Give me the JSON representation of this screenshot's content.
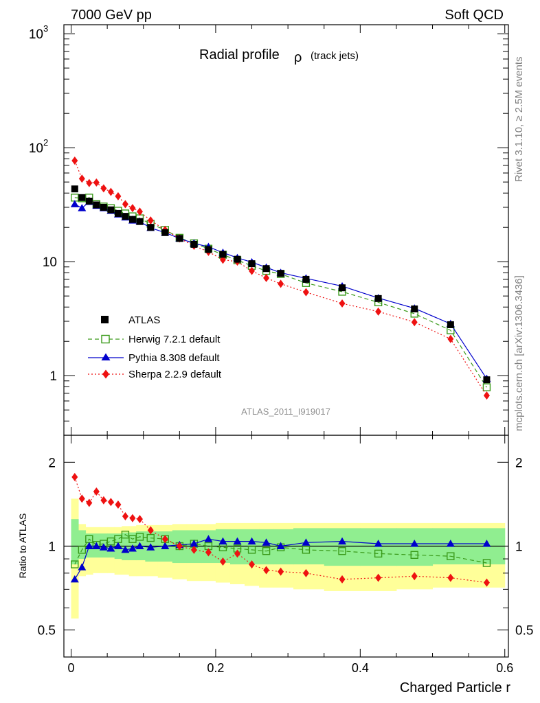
{
  "header": {
    "left": "7000 GeV pp",
    "right": "Soft QCD"
  },
  "side_labels": {
    "rivet": "Rivet 3.1.10, ≥ 2.5M events",
    "source": "mcplots.cern.ch [arXiv:1306.3436]"
  },
  "chart_data": [
    {
      "type": "line",
      "panel": "main",
      "title": "Radial profile",
      "title_symbol": "ρ",
      "title_suffix": "(track jets)",
      "analysis_label": "ATLAS_2011_I919017",
      "y_scale": "log",
      "ylim": [
        0.3,
        1200
      ],
      "xlim": [
        -0.01,
        0.605
      ],
      "y_tick_labels": {
        "1": "1",
        "10": "10",
        "100": "10^2",
        "1000": "10^3"
      },
      "x": [
        0.005,
        0.015,
        0.025,
        0.035,
        0.045,
        0.055,
        0.065,
        0.075,
        0.085,
        0.095,
        0.11,
        0.13,
        0.15,
        0.17,
        0.19,
        0.21,
        0.23,
        0.25,
        0.27,
        0.29,
        0.325,
        0.375,
        0.425,
        0.475,
        0.525,
        0.575
      ],
      "series": [
        {
          "name": "ATLAS",
          "color": "#000000",
          "marker": "square",
          "values": [
            43.5,
            36.5,
            34,
            31.5,
            30,
            28.5,
            26.5,
            25,
            23.5,
            22.5,
            20,
            18,
            16,
            14.2,
            12.8,
            11.6,
            10.5,
            9.6,
            8.7,
            7.9,
            7,
            5.9,
            4.75,
            3.85,
            2.8,
            0.92
          ]
        },
        {
          "name": "Herwig 7.2.1 default",
          "color": "#3a9a1a",
          "marker": "open-square",
          "dash": "6,4",
          "values": [
            36.5,
            36,
            36.5,
            32,
            30.5,
            29.5,
            28,
            26.5,
            25,
            24,
            21.5,
            19,
            16.2,
            14.5,
            13,
            11.5,
            10.3,
            9.2,
            8.3,
            7.8,
            6.5,
            5.45,
            4.4,
            3.5,
            2.5,
            0.79
          ]
        },
        {
          "name": "Pythia 8.308 default",
          "color": "#0000cc",
          "marker": "triangle",
          "dash": "",
          "values": [
            32,
            29.5,
            33.5,
            31,
            29.5,
            28,
            26,
            24.5,
            23,
            22.5,
            19.8,
            18,
            16,
            14.5,
            13.5,
            12,
            10.8,
            9.9,
            8.9,
            8,
            7.15,
            6.1,
            4.8,
            3.9,
            2.85,
            0.94
          ]
        },
        {
          "name": "Sherpa 2.2.9 default",
          "color": "#ee1111",
          "marker": "diamond",
          "dash": "2,3",
          "values": [
            77,
            53.5,
            49,
            49.5,
            44,
            41,
            37.5,
            32,
            29.5,
            27.5,
            23,
            19,
            16,
            13.8,
            12.2,
            10.4,
            10,
            8.3,
            7.2,
            6.4,
            5.4,
            4.3,
            3.65,
            2.95,
            2.1,
            0.67
          ]
        }
      ]
    },
    {
      "type": "line",
      "panel": "ratio",
      "ylabel": "Ratio to ATLAS",
      "xlabel": "Charged Particle r",
      "y_scale": "log",
      "ylim": [
        0.4,
        2.5
      ],
      "xlim": [
        -0.01,
        0.605
      ],
      "y_ticks": [
        0.5,
        1,
        2
      ],
      "x_ticks": [
        0,
        0.2,
        0.4,
        0.6
      ],
      "x_tick_labels": [
        "0",
        "0.2",
        "0.4",
        "0.6"
      ],
      "reference_line": 1,
      "uncertainty_bands": {
        "inner_color": "#90ee90",
        "outer_color": "#ffff99",
        "inner_lo": [
          0.86,
          0.9,
          0.91,
          0.91,
          0.91,
          0.91,
          0.9,
          0.89,
          0.89,
          0.89,
          0.88,
          0.88,
          0.87,
          0.87,
          0.87,
          0.87,
          0.86,
          0.86,
          0.86,
          0.86,
          0.86,
          0.85,
          0.85,
          0.85,
          0.86,
          0.86
        ],
        "inner_hi": [
          1.25,
          1.14,
          1.11,
          1.11,
          1.11,
          1.11,
          1.11,
          1.12,
          1.12,
          1.13,
          1.13,
          1.13,
          1.14,
          1.14,
          1.14,
          1.15,
          1.15,
          1.15,
          1.15,
          1.15,
          1.16,
          1.16,
          1.16,
          1.16,
          1.16,
          1.16
        ],
        "outer_lo": [
          0.55,
          0.78,
          0.79,
          0.8,
          0.8,
          0.8,
          0.79,
          0.79,
          0.78,
          0.78,
          0.78,
          0.77,
          0.76,
          0.75,
          0.75,
          0.74,
          0.73,
          0.72,
          0.71,
          0.71,
          0.7,
          0.69,
          0.69,
          0.7,
          0.71,
          0.71
        ],
        "outer_hi": [
          1.48,
          1.2,
          1.17,
          1.17,
          1.17,
          1.17,
          1.17,
          1.18,
          1.18,
          1.19,
          1.19,
          1.19,
          1.2,
          1.2,
          1.2,
          1.21,
          1.21,
          1.21,
          1.21,
          1.21,
          1.21,
          1.21,
          1.21,
          1.21,
          1.21,
          1.21
        ]
      },
      "x": [
        0.005,
        0.015,
        0.025,
        0.035,
        0.045,
        0.055,
        0.065,
        0.075,
        0.085,
        0.095,
        0.11,
        0.13,
        0.15,
        0.17,
        0.19,
        0.21,
        0.23,
        0.25,
        0.27,
        0.29,
        0.325,
        0.375,
        0.425,
        0.475,
        0.525,
        0.575
      ],
      "series": [
        {
          "name": "Herwig 7.2.1 default",
          "color": "#3a9a1a",
          "marker": "open-square",
          "dash": "6,4",
          "values": [
            0.86,
            0.97,
            1.06,
            1.01,
            1.02,
            1.04,
            1.06,
            1.1,
            1.06,
            1.08,
            1.07,
            1.06,
            1.0,
            1.02,
            1.0,
            0.99,
            0.98,
            0.97,
            0.96,
            0.99,
            0.97,
            0.96,
            0.94,
            0.93,
            0.92,
            0.87
          ]
        },
        {
          "name": "Pythia 8.308 default",
          "color": "#0000cc",
          "marker": "triangle",
          "dash": "",
          "values": [
            0.76,
            0.84,
            1.0,
            1.0,
            0.99,
            0.98,
            1.0,
            0.97,
            0.98,
            1.0,
            0.99,
            1.0,
            1.01,
            1.02,
            1.06,
            1.04,
            1.04,
            1.04,
            1.03,
            1.0,
            1.03,
            1.04,
            1.02,
            1.02,
            1.02,
            1.02
          ]
        },
        {
          "name": "Sherpa 2.2.9 default",
          "color": "#ee1111",
          "marker": "diamond",
          "dash": "2,3",
          "values": [
            1.77,
            1.48,
            1.43,
            1.57,
            1.46,
            1.44,
            1.41,
            1.28,
            1.26,
            1.25,
            1.14,
            1.06,
            1.0,
            0.97,
            0.95,
            0.88,
            0.94,
            0.86,
            0.82,
            0.81,
            0.8,
            0.76,
            0.77,
            0.78,
            0.77,
            0.74
          ]
        }
      ]
    }
  ]
}
